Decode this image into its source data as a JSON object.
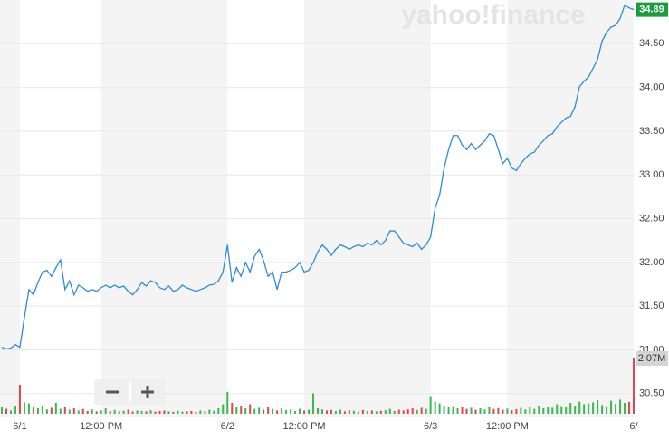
{
  "chart_data": {
    "type": "line",
    "watermark": "yahoo!finance",
    "categories": [
      null,
      null,
      null,
      null,
      "6/1",
      null,
      null,
      null,
      null,
      null,
      null,
      null,
      null,
      null,
      null,
      null,
      null,
      null,
      null,
      null,
      null,
      null,
      "12:00 PM",
      null,
      null,
      null,
      null,
      null,
      null,
      null,
      null,
      null,
      null,
      null,
      null,
      null,
      null,
      null,
      null,
      null,
      null,
      null,
      null,
      null,
      null,
      null,
      null,
      null,
      null,
      null,
      "6/2",
      null,
      null,
      null,
      null,
      null,
      null,
      null,
      null,
      null,
      null,
      null,
      null,
      null,
      null,
      null,
      null,
      "12:00 PM",
      null,
      null,
      null,
      null,
      null,
      null,
      null,
      null,
      null,
      null,
      null,
      null,
      null,
      null,
      null,
      null,
      null,
      null,
      null,
      null,
      null,
      null,
      null,
      null,
      null,
      null,
      null,
      "6/3",
      null,
      null,
      null,
      null,
      null,
      null,
      null,
      null,
      null,
      null,
      null,
      null,
      null,
      null,
      null,
      null,
      "12:00 PM",
      null,
      null,
      null,
      null,
      null,
      null,
      null,
      null,
      null,
      null,
      null,
      null,
      null,
      null,
      null,
      null,
      null,
      null,
      null,
      null,
      null,
      null,
      null,
      null,
      null,
      null,
      null,
      "6/"
    ],
    "series": [
      {
        "color": "#2d8bdd",
        "values": [
          31.03,
          31.01,
          31.02,
          31.06,
          31.03,
          31.37,
          31.69,
          31.63,
          31.77,
          31.89,
          31.91,
          31.84,
          31.94,
          32.03,
          31.69,
          31.79,
          31.63,
          31.74,
          31.71,
          31.67,
          31.69,
          31.67,
          31.71,
          31.74,
          31.71,
          31.74,
          31.71,
          31.73,
          31.67,
          31.63,
          31.69,
          31.77,
          31.73,
          31.79,
          31.77,
          31.71,
          31.69,
          31.73,
          31.67,
          31.69,
          31.74,
          31.71,
          31.69,
          31.67,
          31.69,
          31.71,
          31.74,
          31.75,
          31.79,
          31.89,
          32.2,
          31.77,
          31.94,
          31.84,
          32.0,
          31.89,
          32.07,
          32.15,
          32.02,
          31.84,
          31.89,
          31.69,
          31.89,
          31.89,
          31.91,
          31.94,
          32.0,
          31.89,
          31.91,
          32.0,
          32.12,
          32.2,
          32.15,
          32.08,
          32.15,
          32.2,
          32.18,
          32.15,
          32.18,
          32.2,
          32.18,
          32.22,
          32.2,
          32.25,
          32.2,
          32.25,
          32.36,
          32.36,
          32.29,
          32.22,
          32.2,
          32.18,
          32.22,
          32.15,
          32.2,
          32.29,
          32.62,
          32.77,
          33.08,
          33.29,
          33.45,
          33.45,
          33.34,
          33.29,
          33.36,
          33.29,
          33.34,
          33.39,
          33.47,
          33.45,
          33.29,
          33.13,
          33.19,
          33.08,
          33.05,
          33.13,
          33.19,
          33.24,
          33.26,
          33.34,
          33.39,
          33.45,
          33.47,
          33.55,
          33.6,
          33.65,
          33.67,
          33.78,
          34.01,
          34.07,
          34.12,
          34.22,
          34.32,
          34.53,
          34.63,
          34.69,
          34.71,
          34.79,
          34.94,
          34.91,
          34.89
        ],
        "label_color": "#1a9e3c"
      },
      {
        "type": "bar",
        "up_color": "#3cb84e",
        "down_color": "#e0464e",
        "label_color": "#d4d4d4",
        "values": [
          260000,
          180000,
          120000,
          300000,
          1070000,
          420000,
          380000,
          250000,
          200000,
          300000,
          160000,
          220000,
          400000,
          180000,
          260000,
          150000,
          200000,
          120000,
          180000,
          100000,
          160000,
          90000,
          120000,
          200000,
          100000,
          140000,
          90000,
          110000,
          150000,
          80000,
          120000,
          100000,
          90000,
          130000,
          80000,
          100000,
          120000,
          90000,
          70000,
          110000,
          80000,
          90000,
          100000,
          70000,
          120000,
          90000,
          150000,
          110000,
          200000,
          350000,
          800000,
          400000,
          250000,
          300000,
          200000,
          350000,
          180000,
          220000,
          150000,
          260000,
          180000,
          120000,
          200000,
          140000,
          160000,
          100000,
          180000,
          120000,
          150000,
          750000,
          200000,
          160000,
          120000,
          140000,
          100000,
          150000,
          90000,
          130000,
          110000,
          80000,
          140000,
          100000,
          120000,
          90000,
          110000,
          130000,
          180000,
          100000,
          150000,
          120000,
          160000,
          200000,
          140000,
          220000,
          180000,
          650000,
          450000,
          380000,
          300000,
          250000,
          280000,
          200000,
          260000,
          180000,
          220000,
          150000,
          200000,
          160000,
          240000,
          180000,
          210000,
          150000,
          190000,
          130000,
          170000,
          220000,
          160000,
          250000,
          180000,
          300000,
          200000,
          260000,
          220000,
          350000,
          280000,
          240000,
          400000,
          300000,
          450000,
          350000,
          380000,
          420000,
          500000,
          320000,
          280000,
          480000,
          360000,
          520000,
          400000,
          440000,
          2070000
        ],
        "value_labels": [
          null,
          null,
          null,
          null,
          null,
          null,
          null,
          null,
          null,
          null,
          null,
          null,
          null,
          null,
          null,
          null,
          null,
          null,
          null,
          null,
          null,
          null,
          null,
          null,
          null,
          null,
          null,
          null,
          null,
          null,
          null,
          null,
          null,
          null,
          null,
          null,
          null,
          null,
          null,
          null,
          null,
          null,
          null,
          null,
          null,
          null,
          null,
          null,
          null,
          null,
          null,
          null,
          null,
          null,
          null,
          null,
          null,
          null,
          null,
          null,
          null,
          null,
          null,
          null,
          null,
          null,
          null,
          null,
          null,
          null,
          null,
          null,
          null,
          null,
          null,
          null,
          null,
          null,
          null,
          null,
          null,
          null,
          null,
          null,
          null,
          null,
          null,
          null,
          null,
          null,
          null,
          null,
          null,
          null,
          null,
          null,
          null,
          null,
          null,
          null,
          null,
          null,
          null,
          null,
          null,
          null,
          null,
          null,
          null,
          null,
          null,
          null,
          null,
          null,
          null,
          null,
          null,
          null,
          null,
          null,
          null,
          null,
          null,
          null,
          null,
          null,
          null,
          null,
          null,
          null,
          null,
          null,
          null,
          null,
          null,
          null,
          null,
          null,
          null,
          null,
          "2.07M"
        ]
      }
    ],
    "ylim": [
      30.27,
      35.0
    ],
    "yticks": [
      {
        "value": 30.5,
        "label": "30.50"
      },
      {
        "value": 31,
        "label": "31.00"
      },
      {
        "value": 31.5,
        "label": "31.50"
      },
      {
        "value": 32,
        "label": "32.00"
      },
      {
        "value": 32.5,
        "label": "32.50"
      },
      {
        "value": 33,
        "label": "33.00"
      },
      {
        "value": 33.5,
        "label": "33.50"
      },
      {
        "value": 34,
        "label": "34.00"
      },
      {
        "value": 34.5,
        "label": "34.50"
      }
    ],
    "grid": true
  }
}
